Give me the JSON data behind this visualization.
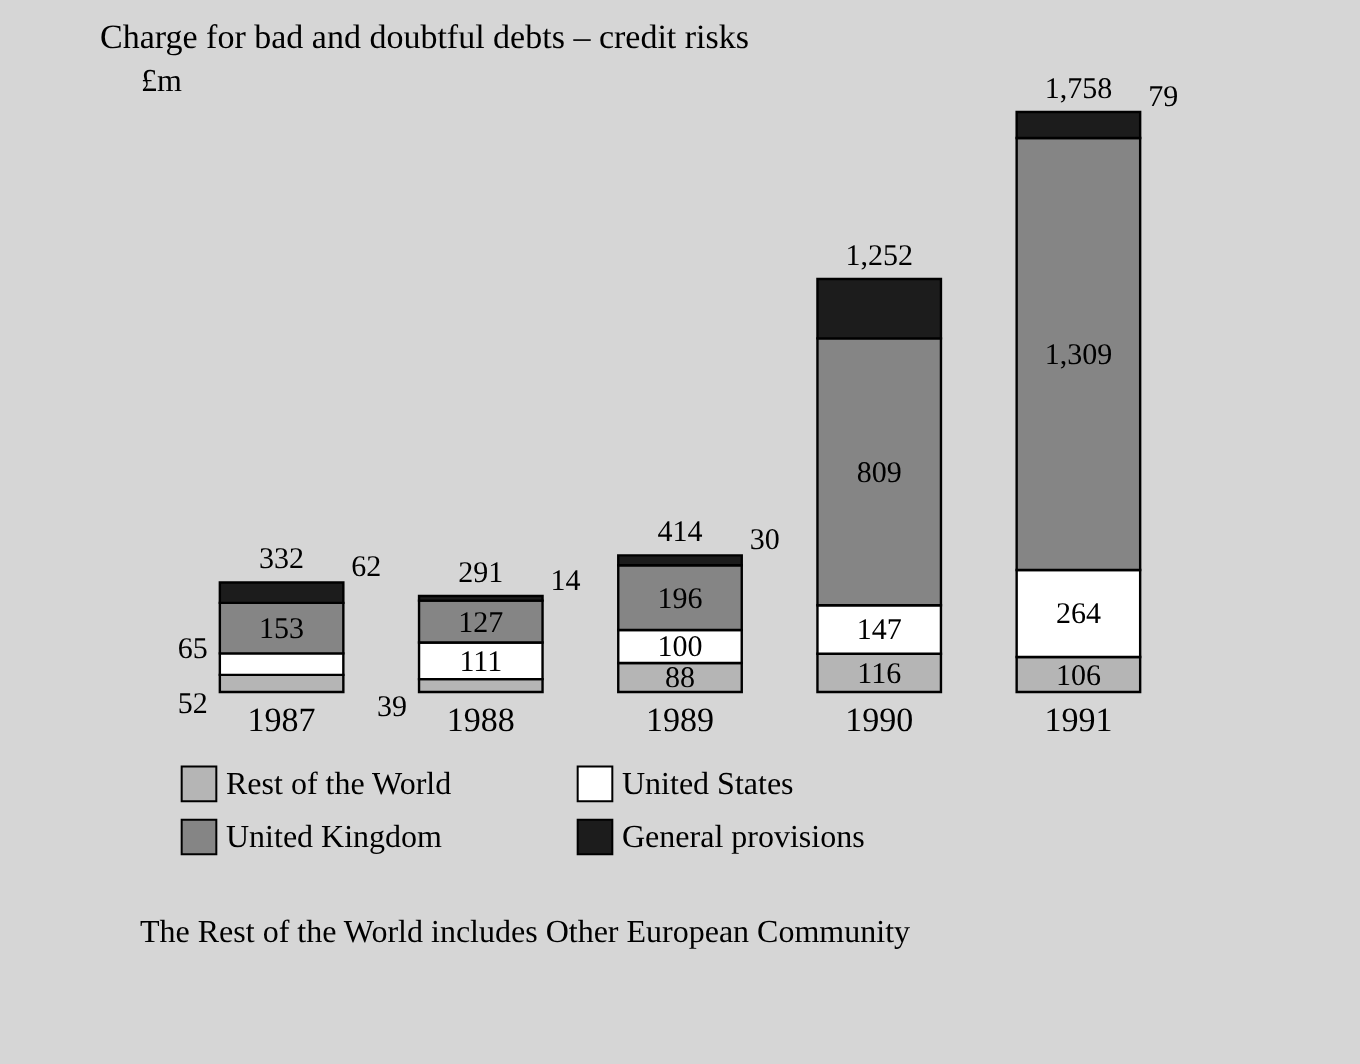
{
  "chart_data": {
    "type": "bar",
    "stacked": true,
    "title": "Charge for bad and doubtful debts – credit risks",
    "ylabel": "£m",
    "categories": [
      "1987",
      "1988",
      "1989",
      "1990",
      "1991"
    ],
    "series": [
      {
        "name": "Rest of the World",
        "color": "#b5b5b5",
        "values": [
          52,
          39,
          88,
          116,
          106
        ],
        "value_labels": [
          "52",
          "39",
          "88",
          "116",
          "106"
        ]
      },
      {
        "name": "United States",
        "color": "#ffffff",
        "values": [
          65,
          111,
          100,
          147,
          264
        ],
        "value_labels": [
          "65",
          "111",
          "100",
          "147",
          "264"
        ]
      },
      {
        "name": "United Kingdom",
        "color": "#858585",
        "values": [
          153,
          127,
          196,
          809,
          1309
        ],
        "value_labels": [
          "153",
          "127",
          "196",
          "809",
          "1,309"
        ]
      },
      {
        "name": "General provisions",
        "color": "#1c1c1c",
        "values": [
          62,
          14,
          30,
          180,
          79
        ],
        "value_labels": [
          "62",
          "14",
          "30",
          null,
          "79"
        ]
      }
    ],
    "totals": [
      "332",
      "291",
      "414",
      "1,252",
      "1,758"
    ],
    "legend": "bottom",
    "annotations": [
      "The Rest of the World includes Other European Community"
    ]
  }
}
